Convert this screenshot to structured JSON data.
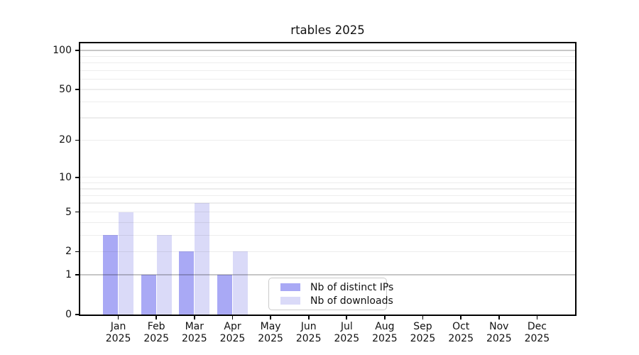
{
  "figure": {
    "title": "rtables 2025"
  },
  "chart_data": {
    "type": "bar",
    "title": "rtables 2025",
    "scale": "log1p",
    "ylim": [
      0,
      113
    ],
    "grid": "horizontal",
    "y_ticks": [
      0,
      1,
      2,
      5,
      10,
      20,
      50,
      100
    ],
    "major_gridlines": [
      1,
      100
    ],
    "minor_gridlines": [
      2,
      3,
      4,
      5,
      6,
      7,
      8,
      9,
      10,
      20,
      30,
      40,
      50,
      60,
      70,
      80,
      90
    ],
    "categories": [
      "Jan",
      "Feb",
      "Mar",
      "Apr",
      "May",
      "Jun",
      "Jul",
      "Aug",
      "Sep",
      "Oct",
      "Nov",
      "Dec"
    ],
    "x_tick_year": "2025",
    "series": [
      {
        "name": "Nb of distinct IPs",
        "color": "#a9a9f5",
        "values": [
          3,
          1,
          2,
          1,
          0,
          0,
          0,
          0,
          0,
          0,
          0,
          0
        ]
      },
      {
        "name": "Nb of downloads",
        "color": "#dadaf8",
        "values": [
          5,
          3,
          6,
          2,
          0,
          0,
          0,
          0,
          0,
          0,
          0,
          0
        ]
      }
    ],
    "legend_position": "inside lower center"
  }
}
